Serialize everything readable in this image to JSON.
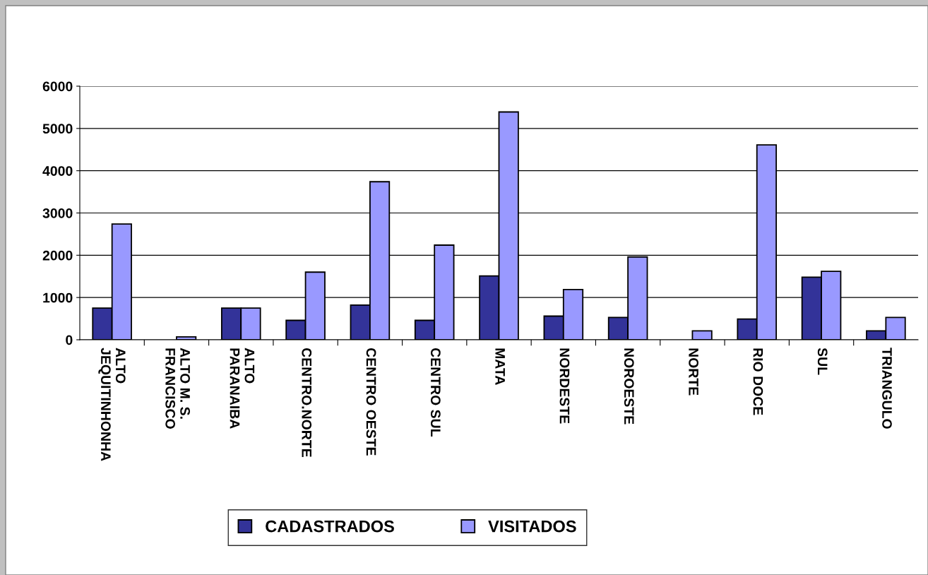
{
  "chart_data": {
    "type": "bar",
    "categories": [
      "ALTO\nJEQUITINHONHA",
      "ALTO M. S.\nFRANCISCO",
      "ALTO\nPARANAIBA",
      "CENTRO.NORTE",
      "CENTRO OESTE",
      "CENTRO SUL",
      "MATA",
      "NORDESTE",
      "NOROESTE",
      "NORTE",
      "RIO DOCE",
      "SUL",
      "TRIANGULO"
    ],
    "series": [
      {
        "name": "CADASTRADOS",
        "color": "#333399",
        "values": [
          750,
          0,
          750,
          460,
          820,
          460,
          1510,
          560,
          530,
          0,
          490,
          1480,
          210
        ]
      },
      {
        "name": "VISITADOS",
        "color": "#9999ff",
        "values": [
          2740,
          70,
          750,
          1600,
          3740,
          2240,
          5390,
          1190,
          1960,
          210,
          4610,
          1620,
          530
        ]
      }
    ],
    "ylim": [
      0,
      6000
    ],
    "yticks": [
      0,
      1000,
      2000,
      3000,
      4000,
      5000,
      6000
    ],
    "grid": "y",
    "legend": "bottom"
  }
}
